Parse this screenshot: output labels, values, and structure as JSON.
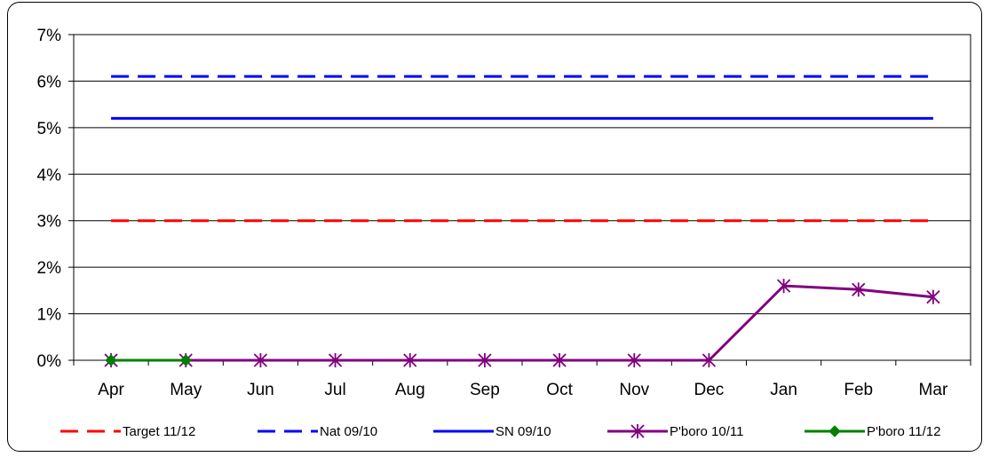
{
  "chart_data": {
    "type": "line",
    "categories": [
      "Apr",
      "May",
      "Jun",
      "Jul",
      "Aug",
      "Sep",
      "Oct",
      "Nov",
      "Dec",
      "Jan",
      "Feb",
      "Mar"
    ],
    "y_ticks": [
      "0%",
      "1%",
      "2%",
      "3%",
      "4%",
      "5%",
      "6%",
      "7%"
    ],
    "ylim": [
      0,
      7
    ],
    "y_unit": "%",
    "grid": "horizontal",
    "legend_position": "bottom",
    "series": [
      {
        "name": "Target 11/12",
        "color": "#ff0000",
        "dash": "dashed",
        "marker": "none",
        "values": [
          3,
          3,
          3,
          3,
          3,
          3,
          3,
          3,
          3,
          3,
          3,
          3
        ]
      },
      {
        "name": "Nat 09/10",
        "color": "#0000ff",
        "dash": "dashed",
        "marker": "none",
        "values": [
          6.1,
          6.1,
          6.1,
          6.1,
          6.1,
          6.1,
          6.1,
          6.1,
          6.1,
          6.1,
          6.1,
          6.1
        ]
      },
      {
        "name": "SN 09/10",
        "color": "#0000ff",
        "dash": "solid",
        "marker": "none",
        "values": [
          5.2,
          5.2,
          5.2,
          5.2,
          5.2,
          5.2,
          5.2,
          5.2,
          5.2,
          5.2,
          5.2,
          5.2
        ]
      },
      {
        "name": "P'boro 10/11",
        "color": "#800080",
        "dash": "solid",
        "marker": "star",
        "values": [
          0,
          0,
          0,
          0,
          0,
          0,
          0,
          0,
          0,
          1.6,
          1.52,
          1.36
        ]
      },
      {
        "name": "P'boro 11/12",
        "color": "#008000",
        "dash": "solid",
        "marker": "diamond",
        "values": [
          0,
          0,
          null,
          null,
          null,
          null,
          null,
          null,
          null,
          null,
          null,
          null
        ]
      }
    ]
  }
}
